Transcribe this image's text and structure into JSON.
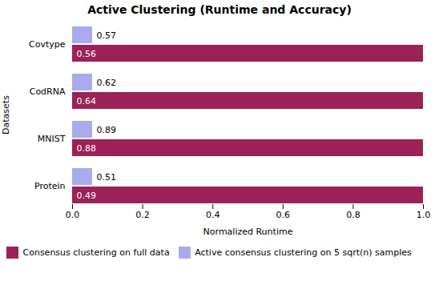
{
  "chart_data": {
    "type": "bar",
    "orientation": "horizontal",
    "title": "Active Clustering (Runtime and Accuracy)",
    "xlabel": "Normalized Runtime",
    "ylabel": "Datasets",
    "categories": [
      "Covtype",
      "CodRNA",
      "MNIST",
      "Protein"
    ],
    "series": [
      {
        "name": "Consensus clustering on full data",
        "color": "#9B2157",
        "values": [
          1.0,
          1.0,
          1.0,
          1.0
        ],
        "accuracy": [
          0.56,
          0.64,
          0.88,
          0.49
        ]
      },
      {
        "name": "Active consensus clustering on 5 sqrt(n) samples",
        "color": "#AAAAEE",
        "values": [
          0.057,
          0.057,
          0.057,
          0.057
        ],
        "accuracy": [
          0.57,
          0.62,
          0.89,
          0.51
        ]
      }
    ],
    "xlim": [
      0,
      1.0
    ],
    "xticks": [
      {
        "value": 0,
        "label": "0.0"
      },
      0.2,
      0.4,
      0.6,
      0.8,
      {
        "value": 1.0,
        "label": "1.0"
      }
    ],
    "legend": "bottom"
  }
}
